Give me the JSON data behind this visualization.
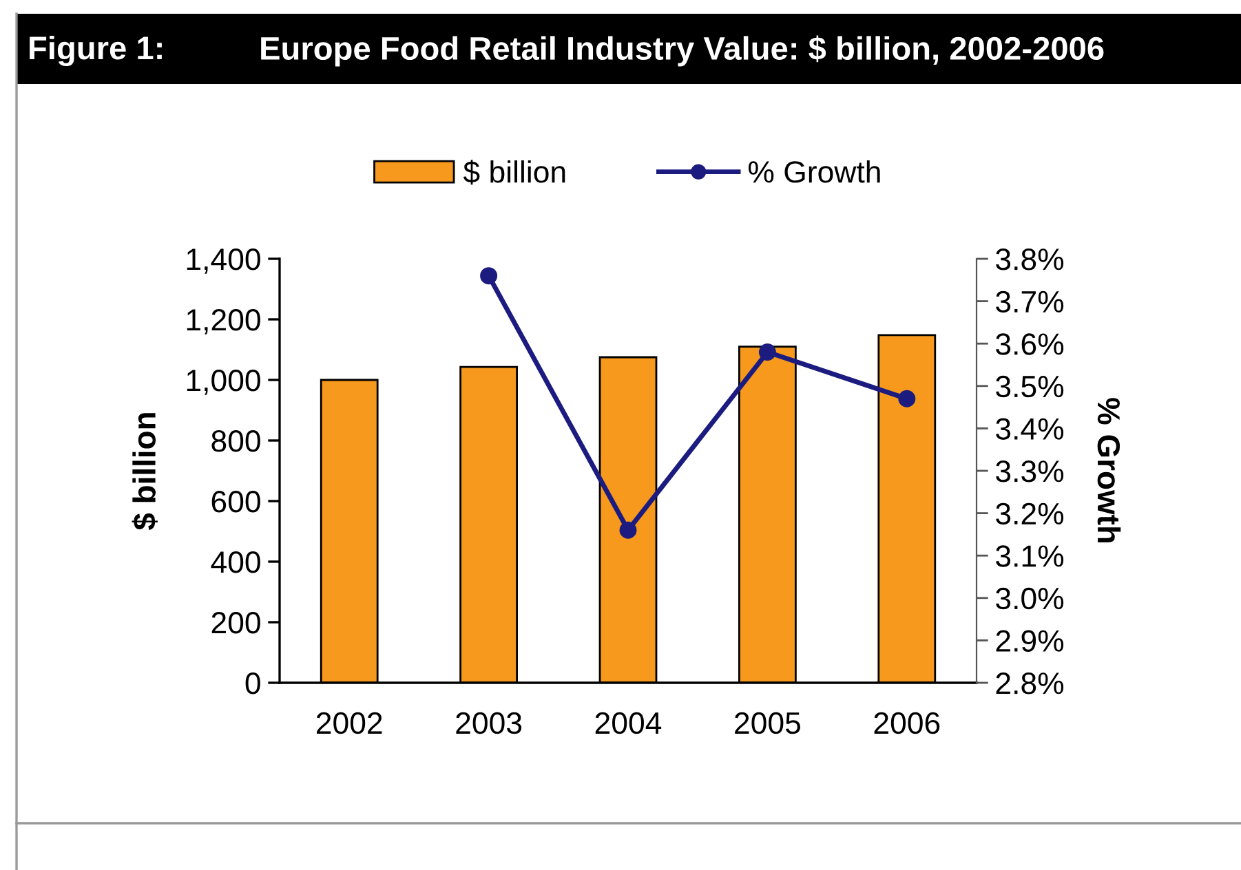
{
  "chart_data": {
    "type": "bar",
    "title": "Figure 1:",
    "subtitle": "Europe Food Retail Industry Value: $ billion, 2002-2006",
    "ylabel": "$ billion",
    "y2label": "% Growth",
    "categories": [
      "2002",
      "2003",
      "2004",
      "2005",
      "2006"
    ],
    "series": [
      {
        "name": "$ billion",
        "color": "#f7991c",
        "values": [
          1000,
          1043,
          1075,
          1110,
          1148
        ]
      },
      {
        "name": "% Growth",
        "type": "line",
        "axis": "y2",
        "color": "#1c1c80",
        "values": [
          null,
          3.76,
          3.16,
          3.58,
          3.47
        ]
      }
    ],
    "ylim": [
      0,
      1400
    ],
    "yticks": [
      0,
      200,
      400,
      600,
      800,
      {
        "value": 1000,
        "label": "1,000"
      },
      {
        "value": 1200,
        "label": "1,200"
      },
      {
        "value": 1400,
        "label": "1,400"
      }
    ],
    "y2lim": [
      2.8,
      3.8
    ],
    "y2ticks": [
      {
        "value": 2.8,
        "label": "2.8%"
      },
      {
        "value": 2.9,
        "label": "2.9%"
      },
      {
        "value": 3.0,
        "label": "3.0%"
      },
      {
        "value": 3.1,
        "label": "3.1%"
      },
      {
        "value": 3.2,
        "label": "3.2%"
      },
      {
        "value": 3.3,
        "label": "3.3%"
      },
      {
        "value": 3.4,
        "label": "3.4%"
      },
      {
        "value": 3.5,
        "label": "3.5%"
      },
      {
        "value": 3.6,
        "label": "3.6%"
      },
      {
        "value": 3.7,
        "label": "3.7%"
      },
      {
        "value": 3.8,
        "label": "3.8%"
      }
    ],
    "marker": "circle",
    "line_style": "solid",
    "legend": "top",
    "grid": false
  }
}
